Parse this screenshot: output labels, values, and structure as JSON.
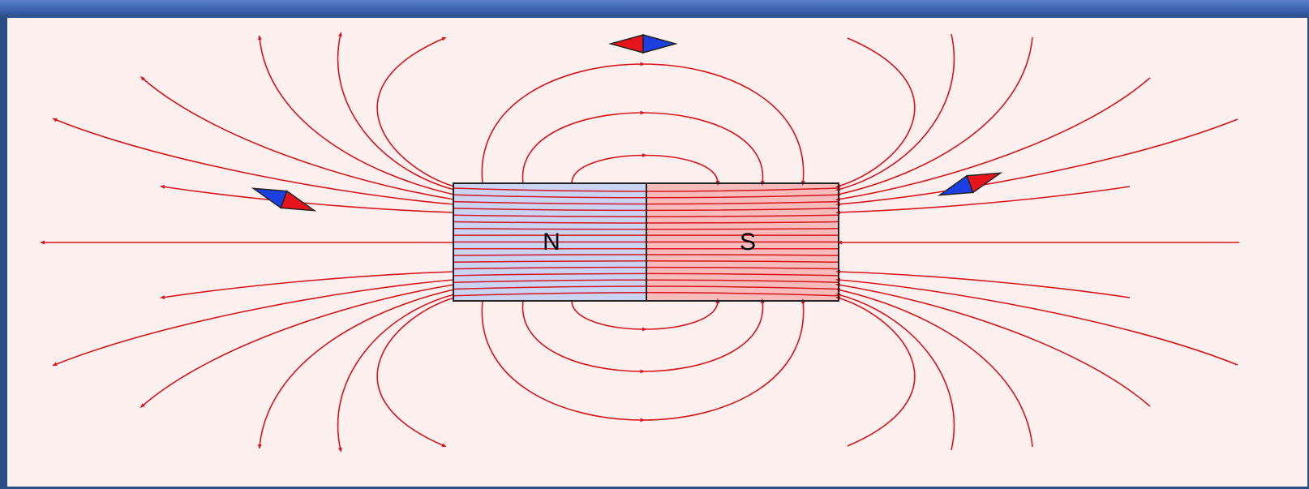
{
  "magnet": {
    "north_label": "N",
    "south_label": "S",
    "north_color": "#c9d3f2",
    "south_color": "#f9bcbc"
  },
  "field_line_color": "#d8141c",
  "compass": {
    "north_tip_color": "#e8141c",
    "south_tip_color": "#1b3fe0"
  }
}
